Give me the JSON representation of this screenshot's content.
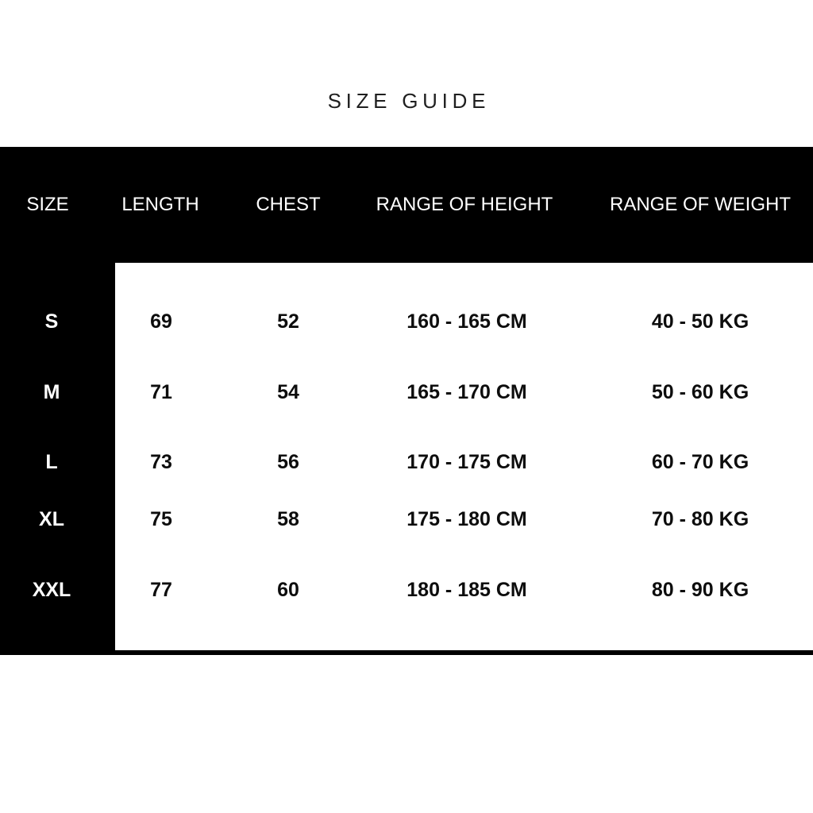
{
  "title": "SIZE GUIDE",
  "table": {
    "headers": {
      "size": "SIZE",
      "length": "LENGTH",
      "chest": "CHEST",
      "height": "RANGE OF HEIGHT",
      "weight": "RANGE OF WEIGHT"
    },
    "rows": [
      {
        "size": "S",
        "length": "69",
        "chest": "52",
        "height": "160 - 165 CM",
        "weight": "40 - 50 KG"
      },
      {
        "size": "M",
        "length": "71",
        "chest": "54",
        "height": "165 - 170 CM",
        "weight": "50 - 60 KG"
      },
      {
        "size": "L",
        "length": "73",
        "chest": "56",
        "height": "170 - 175 CM",
        "weight": "60 - 70 KG"
      },
      {
        "size": "XL",
        "length": "75",
        "chest": "58",
        "height": "175 - 180 CM",
        "weight": "70 - 80 KG"
      },
      {
        "size": "XXL",
        "length": "77",
        "chest": "60",
        "height": "180 - 185 CM",
        "weight": "80 - 90 KG"
      }
    ]
  },
  "colors": {
    "background": "#ffffff",
    "band": "#000000",
    "header_text": "#ffffff",
    "title_text": "#1f1f1f",
    "cell_text": "#0d0d0d"
  }
}
